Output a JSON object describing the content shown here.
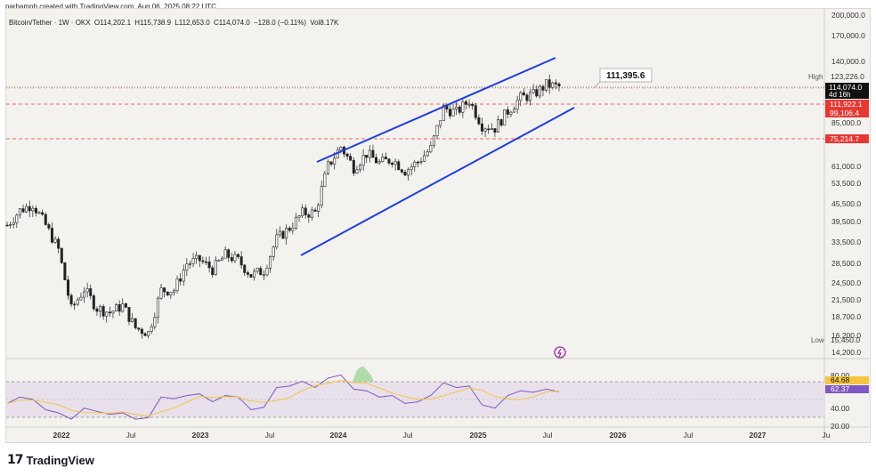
{
  "attribution": "parhamnb created with TradingView.com, Aug 06, 2025 08:22 UTC",
  "symbol": {
    "name": "Bitcoin/Tether · 1W · OKX",
    "open": "O114,202.1",
    "high": "H115,738.9",
    "low": "L112,653.0",
    "close": "C114,074.0",
    "change": "−128.0 (−0.11%)",
    "volume": "Vol8.17K"
  },
  "price_axis": {
    "ticks": [
      "200,000.0",
      "170,000.0",
      "140,000.0",
      "85,000.0",
      "61,000.0",
      "53,500.0",
      "45,500.0",
      "39,500.0",
      "33,500.0",
      "28,500.0",
      "24,500.0",
      "21,500.0",
      "18,700.0",
      "16,200.0",
      "14,200.0"
    ],
    "high_label": "High",
    "high_value": "123,226.0",
    "low_label": "Low",
    "low_value": "15,450.0",
    "current_price": "114,074.0",
    "countdown": "4d 16h",
    "levels": [
      "111,922.1",
      "99,106.4",
      "75,214.7"
    ]
  },
  "annotation": "111,395.6",
  "rsi_axis": {
    "ticks": [
      "80.00",
      "40.00",
      "20.00"
    ],
    "rsi_value": "64.68",
    "ma_value": "62.37"
  },
  "time_axis": [
    "2022",
    "Jul",
    "2023",
    "Jul",
    "2024",
    "Jul",
    "2025",
    "Jul",
    "2026",
    "Jul",
    "2027",
    "Ju"
  ],
  "colors": {
    "up": "#222222",
    "down": "#222222",
    "channel": "#1e3ede",
    "level": "#e53935",
    "rsi_line": "#7e57c2",
    "rsi_ma": "#f5c542",
    "rsi_band": "#e6dde9",
    "accent": "#9c27b0"
  },
  "chart_data": {
    "type": "candlestick",
    "interval": "1W",
    "yscale": "log",
    "series": [
      {
        "name": "Bitcoin/Tether",
        "x": [
          "2022-01",
          "2022-02",
          "2022-03",
          "2022-04",
          "2022-05",
          "2022-06",
          "2022-07",
          "2022-08",
          "2022-09",
          "2022-10",
          "2022-11",
          "2022-12",
          "2023-01",
          "2023-02",
          "2023-03",
          "2023-04",
          "2023-05",
          "2023-06",
          "2023-07",
          "2023-08",
          "2023-09",
          "2023-10",
          "2023-11",
          "2023-12",
          "2024-01",
          "2024-02",
          "2024-03",
          "2024-04",
          "2024-05",
          "2024-06",
          "2024-07",
          "2024-08",
          "2024-09",
          "2024-10",
          "2024-11",
          "2024-12",
          "2025-01",
          "2025-02",
          "2025-03",
          "2025-04",
          "2025-05",
          "2025-06",
          "2025-07",
          "2025-08"
        ],
        "close": [
          38500,
          43200,
          45500,
          38500,
          31800,
          19900,
          23300,
          20100,
          19400,
          20500,
          17200,
          16550,
          23100,
          23150,
          28500,
          29300,
          27200,
          30500,
          29200,
          26000,
          27000,
          34500,
          37700,
          42300,
          42500,
          61200,
          71300,
          60600,
          67500,
          62700,
          64600,
          59000,
          63300,
          70200,
          96400,
          93400,
          102400,
          84300,
          82500,
          94200,
          104600,
          107100,
          115800,
          114074
        ]
      }
    ],
    "channel": {
      "upper": {
        "from": "2024-02",
        "to": "2025-08",
        "start": 63000,
        "end": 141000
      },
      "lower": {
        "from": "2023-10",
        "to": "2025-08",
        "start": 30200,
        "end": 90500
      }
    },
    "horizontal_levels": [
      111922.1,
      99106.4,
      75214.7
    ],
    "rsi": {
      "period_values": [
        50,
        58,
        55,
        42,
        38,
        30,
        44,
        40,
        36,
        38,
        30,
        32,
        58,
        56,
        60,
        62,
        52,
        60,
        58,
        42,
        45,
        70,
        72,
        78,
        70,
        82,
        86,
        68,
        66,
        58,
        60,
        50,
        52,
        60,
        76,
        70,
        72,
        48,
        44,
        60,
        66,
        64,
        68,
        64.68
      ],
      "ma_last": 62.37,
      "ylim": [
        20,
        100
      ]
    }
  }
}
